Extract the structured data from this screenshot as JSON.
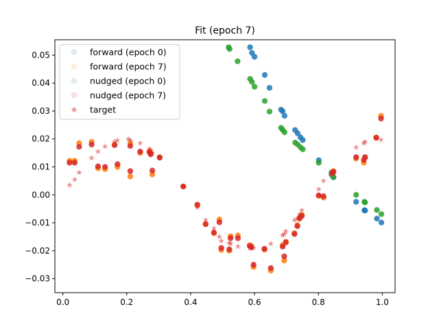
{
  "chart_data": {
    "type": "scatter",
    "title": "Fit (epoch 7)",
    "xlabel": "",
    "ylabel": "",
    "xlim": [
      -0.025,
      1.04
    ],
    "ylim": [
      -0.035,
      0.0555
    ],
    "xticks": [
      0.0,
      0.2,
      0.4,
      0.6,
      0.8,
      1.0
    ],
    "xtick_labels": [
      "0.0",
      "0.2",
      "0.4",
      "0.6",
      "0.8",
      "1.0"
    ],
    "yticks": [
      -0.03,
      -0.02,
      -0.01,
      0.0,
      0.01,
      0.02,
      0.03,
      0.04,
      0.05
    ],
    "ytick_labels": [
      "−0.03",
      "−0.02",
      "−0.01",
      "0.00",
      "0.01",
      "0.02",
      "0.03",
      "0.04",
      "0.05"
    ],
    "grid": false,
    "legend_position": "top-left",
    "series": [
      {
        "name": "forward (epoch 0)",
        "color": "#1f77b4",
        "marker": "circle",
        "points": [
          [
            0.586,
            0.0528
          ],
          [
            0.592,
            0.0508
          ],
          [
            0.6,
            0.0494
          ],
          [
            0.632,
            0.0429
          ],
          [
            0.647,
            0.0383
          ],
          [
            0.683,
            0.0305
          ],
          [
            0.688,
            0.0299
          ],
          [
            0.694,
            0.0283
          ],
          [
            0.727,
            0.0232
          ],
          [
            0.735,
            0.022
          ],
          [
            0.744,
            0.0206
          ],
          [
            0.751,
            0.0196
          ],
          [
            0.801,
            0.0124
          ],
          [
            0.841,
            0.0072
          ],
          [
            0.847,
            0.0063
          ],
          [
            0.918,
            -0.0025
          ],
          [
            0.944,
            -0.0055
          ],
          [
            0.946,
            -0.0056
          ],
          [
            0.983,
            -0.0085
          ],
          [
            0.997,
            -0.0099
          ]
        ]
      },
      {
        "name": "forward (epoch 7)",
        "color": "#ff7f0e",
        "marker": "circle",
        "points": [
          [
            0.021,
            0.0122
          ],
          [
            0.037,
            0.0122
          ],
          [
            0.051,
            0.0185
          ],
          [
            0.09,
            0.019
          ],
          [
            0.11,
            0.0095
          ],
          [
            0.132,
            0.0092
          ],
          [
            0.162,
            0.018
          ],
          [
            0.171,
            0.01
          ],
          [
            0.211,
            0.0066
          ],
          [
            0.211,
            0.0185
          ],
          [
            0.242,
            0.015
          ],
          [
            0.271,
            0.0155
          ],
          [
            0.275,
            0.015
          ],
          [
            0.28,
            0.0073
          ],
          [
            0.303,
            0.0135
          ],
          [
            0.377,
            0.003
          ],
          [
            0.421,
            -0.0038
          ],
          [
            0.447,
            -0.0104
          ],
          [
            0.473,
            -0.0137
          ],
          [
            0.49,
            -0.0088
          ],
          [
            0.496,
            -0.0197
          ],
          [
            0.521,
            -0.02
          ],
          [
            0.525,
            -0.0148
          ],
          [
            0.548,
            -0.0145
          ],
          [
            0.585,
            -0.018
          ],
          [
            0.59,
            -0.0183
          ],
          [
            0.597,
            -0.0258
          ],
          [
            0.631,
            -0.0196
          ],
          [
            0.651,
            -0.0271
          ],
          [
            0.688,
            -0.018
          ],
          [
            0.693,
            -0.0235
          ],
          [
            0.698,
            -0.0168
          ],
          [
            0.725,
            -0.0137
          ],
          [
            0.734,
            -0.0108
          ],
          [
            0.741,
            -0.008
          ],
          [
            0.748,
            -0.0072
          ],
          [
            0.801,
            -0.0003
          ],
          [
            0.816,
            -0.001
          ],
          [
            0.843,
            0.0073
          ],
          [
            0.847,
            0.0085
          ],
          [
            0.918,
            0.013
          ],
          [
            0.942,
            0.0115
          ],
          [
            0.946,
            0.0133
          ],
          [
            0.981,
            0.0205
          ],
          [
            0.996,
            0.0283
          ]
        ]
      },
      {
        "name": "nudged (epoch 0)",
        "color": "#2ca02c",
        "marker": "circle",
        "points": [
          [
            0.519,
            0.0528
          ],
          [
            0.522,
            0.0522
          ],
          [
            0.547,
            0.0478
          ],
          [
            0.586,
            0.0415
          ],
          [
            0.592,
            0.0404
          ],
          [
            0.6,
            0.0387
          ],
          [
            0.632,
            0.0336
          ],
          [
            0.647,
            0.0298
          ],
          [
            0.683,
            0.024
          ],
          [
            0.688,
            0.0233
          ],
          [
            0.694,
            0.0224
          ],
          [
            0.727,
            0.0187
          ],
          [
            0.735,
            0.018
          ],
          [
            0.744,
            0.017
          ],
          [
            0.751,
            0.0163
          ],
          [
            0.801,
            0.0115
          ],
          [
            0.841,
            0.008
          ],
          [
            0.847,
            0.0064
          ],
          [
            0.918,
            0.0
          ],
          [
            0.944,
            -0.0025
          ],
          [
            0.946,
            -0.0027
          ],
          [
            0.983,
            -0.0054
          ],
          [
            0.997,
            -0.0069
          ]
        ]
      },
      {
        "name": "nudged (epoch 7)",
        "color": "#d62728",
        "marker": "circle",
        "points": [
          [
            0.021,
            0.0115
          ],
          [
            0.037,
            0.0115
          ],
          [
            0.051,
            0.0172
          ],
          [
            0.09,
            0.018
          ],
          [
            0.11,
            0.0102
          ],
          [
            0.132,
            0.01
          ],
          [
            0.162,
            0.0178
          ],
          [
            0.171,
            0.011
          ],
          [
            0.211,
            0.0085
          ],
          [
            0.211,
            0.0175
          ],
          [
            0.242,
            0.0155
          ],
          [
            0.271,
            0.0153
          ],
          [
            0.275,
            0.0145
          ],
          [
            0.28,
            0.0087
          ],
          [
            0.303,
            0.0133
          ],
          [
            0.377,
            0.003
          ],
          [
            0.421,
            -0.0035
          ],
          [
            0.447,
            -0.0105
          ],
          [
            0.473,
            -0.0135
          ],
          [
            0.49,
            -0.0098
          ],
          [
            0.496,
            -0.019
          ],
          [
            0.521,
            -0.0195
          ],
          [
            0.525,
            -0.0155
          ],
          [
            0.548,
            -0.0155
          ],
          [
            0.585,
            -0.0183
          ],
          [
            0.59,
            -0.0187
          ],
          [
            0.597,
            -0.025
          ],
          [
            0.631,
            -0.0193
          ],
          [
            0.651,
            -0.0262
          ],
          [
            0.688,
            -0.0185
          ],
          [
            0.693,
            -0.022
          ],
          [
            0.698,
            -0.017
          ],
          [
            0.725,
            -0.014
          ],
          [
            0.734,
            -0.0112
          ],
          [
            0.741,
            -0.0085
          ],
          [
            0.748,
            -0.0075
          ],
          [
            0.801,
            -0.0002
          ],
          [
            0.816,
            -0.0005
          ],
          [
            0.843,
            0.0078
          ],
          [
            0.847,
            0.0082
          ],
          [
            0.918,
            0.0135
          ],
          [
            0.942,
            0.0125
          ],
          [
            0.946,
            0.0135
          ],
          [
            0.981,
            0.0205
          ],
          [
            0.996,
            0.0273
          ]
        ]
      },
      {
        "name": "target",
        "color": "#d62728",
        "marker": "star",
        "points": [
          [
            0.021,
            0.0035
          ],
          [
            0.037,
            0.0055
          ],
          [
            0.051,
            0.008
          ],
          [
            0.09,
            0.0132
          ],
          [
            0.11,
            0.0155
          ],
          [
            0.132,
            0.0173
          ],
          [
            0.162,
            0.019
          ],
          [
            0.171,
            0.0195
          ],
          [
            0.205,
            0.02
          ],
          [
            0.211,
            0.0195
          ],
          [
            0.242,
            0.0185
          ],
          [
            0.271,
            0.0165
          ],
          [
            0.275,
            0.016
          ],
          [
            0.28,
            0.015
          ],
          [
            0.303,
            0.0135
          ],
          [
            0.377,
            0.003
          ],
          [
            0.421,
            -0.0045
          ],
          [
            0.447,
            -0.009
          ],
          [
            0.473,
            -0.012
          ],
          [
            0.49,
            -0.015
          ],
          [
            0.496,
            -0.0165
          ],
          [
            0.521,
            -0.0172
          ],
          [
            0.525,
            -0.0175
          ],
          [
            0.548,
            -0.0185
          ],
          [
            0.585,
            -0.019
          ],
          [
            0.59,
            -0.0192
          ],
          [
            0.597,
            -0.019
          ],
          [
            0.631,
            -0.0193
          ],
          [
            0.651,
            -0.0175
          ],
          [
            0.688,
            -0.0145
          ],
          [
            0.693,
            -0.014
          ],
          [
            0.698,
            -0.013
          ],
          [
            0.725,
            -0.009
          ],
          [
            0.734,
            -0.0085
          ],
          [
            0.741,
            -0.007
          ],
          [
            0.748,
            -0.0055
          ],
          [
            0.801,
            0.002
          ],
          [
            0.816,
            0.005
          ],
          [
            0.843,
            0.008
          ],
          [
            0.847,
            0.0085
          ],
          [
            0.918,
            0.017
          ],
          [
            0.942,
            0.0185
          ],
          [
            0.946,
            0.019
          ],
          [
            0.981,
            0.02
          ],
          [
            0.996,
            0.0197
          ]
        ]
      }
    ]
  }
}
